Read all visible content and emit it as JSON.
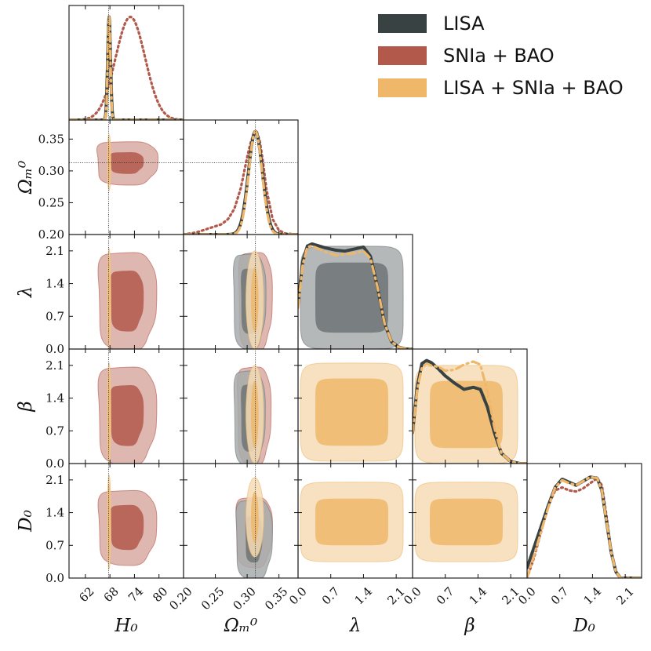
{
  "chart_data": {
    "type": "corner",
    "legend": {
      "placement": "top-right",
      "entries": [
        {
          "label": "LISA",
          "color": "#394243"
        },
        {
          "label": "SNIa + BAO",
          "color": "#b2594b"
        },
        {
          "label": "LISA + SNIa + BAO",
          "color": "#efb76a"
        }
      ]
    },
    "parameters": [
      {
        "name": "H0",
        "label": "H₀",
        "range": [
          58,
          86
        ],
        "ticks": [
          62,
          68,
          74,
          80
        ],
        "truth": 67.7
      },
      {
        "name": "Om",
        "label": "Ωₘ⁰",
        "range": [
          0.2,
          0.38
        ],
        "ticks": [
          0.2,
          0.25,
          0.3,
          0.35
        ],
        "truth": 0.313
      },
      {
        "name": "lambda",
        "label": "λ",
        "range": [
          0.0,
          2.45
        ],
        "ticks": [
          0.0,
          0.7,
          1.4,
          2.1
        ],
        "truth": null
      },
      {
        "name": "beta",
        "label": "β",
        "range": [
          0.0,
          2.45
        ],
        "ticks": [
          0.0,
          0.7,
          1.4,
          2.1
        ],
        "truth": null
      },
      {
        "name": "D0",
        "label": "D₀",
        "range": [
          0.0,
          2.45
        ],
        "ticks": [
          0.0,
          0.7,
          1.4,
          2.1
        ],
        "truth": null
      }
    ],
    "series": [
      {
        "name": "LISA",
        "color": "#394243",
        "marginals": {
          "H0": {
            "type": "gauss",
            "mean": 67.8,
            "sd": 0.35
          },
          "Om": {
            "type": "gauss",
            "mean": 0.313,
            "sd": 0.011
          },
          "lambda": {
            "type": "points",
            "x": [
              0.0,
              0.1,
              0.2,
              0.3,
              0.45,
              0.6,
              0.8,
              1.0,
              1.2,
              1.4,
              1.55,
              1.7,
              1.85,
              2.0,
              2.15,
              2.3,
              2.45
            ],
            "y": [
              0.45,
              0.85,
              1.0,
              1.02,
              1.0,
              0.98,
              0.96,
              0.95,
              0.97,
              0.99,
              0.9,
              0.6,
              0.25,
              0.07,
              0.02,
              0.0,
              0.0
            ]
          },
          "beta": {
            "type": "points",
            "x": [
              0.0,
              0.1,
              0.2,
              0.3,
              0.4,
              0.55,
              0.7,
              0.9,
              1.1,
              1.3,
              1.45,
              1.6,
              1.75,
              1.9,
              2.1,
              2.3,
              2.45
            ],
            "y": [
              0.3,
              0.75,
              0.97,
              1.0,
              0.98,
              0.92,
              0.85,
              0.78,
              0.72,
              0.74,
              0.72,
              0.55,
              0.3,
              0.1,
              0.02,
              0.0,
              0.0
            ]
          },
          "D0": {
            "type": "points",
            "x": [
              0.0,
              0.15,
              0.3,
              0.45,
              0.6,
              0.75,
              0.9,
              1.05,
              1.2,
              1.35,
              1.5,
              1.6,
              1.7,
              1.8,
              1.9,
              2.0,
              2.2,
              2.45
            ],
            "y": [
              0.1,
              0.3,
              0.5,
              0.7,
              0.88,
              0.96,
              0.93,
              0.9,
              0.94,
              0.98,
              0.97,
              0.85,
              0.55,
              0.25,
              0.06,
              0.0,
              0.0,
              0.0
            ]
          }
        }
      },
      {
        "name": "SNIa + BAO",
        "color": "#b2594b",
        "marginals": {
          "H0": {
            "type": "gauss",
            "mean": 73.0,
            "sd": 3.6
          },
          "Om": {
            "type": "points",
            "x": [
              0.2,
              0.22,
              0.24,
              0.26,
              0.27,
              0.28,
              0.29,
              0.3,
              0.305,
              0.31,
              0.315,
              0.32,
              0.325,
              0.33,
              0.34,
              0.35,
              0.36,
              0.38
            ],
            "y": [
              0.0,
              0.02,
              0.06,
              0.1,
              0.15,
              0.25,
              0.45,
              0.75,
              0.88,
              0.97,
              1.0,
              0.9,
              0.7,
              0.45,
              0.15,
              0.04,
              0.01,
              0.0
            ]
          },
          "lambda": {
            "type": "flat"
          },
          "beta": {
            "type": "flat"
          },
          "D0": {
            "type": "points",
            "x": [
              0.0,
              0.15,
              0.3,
              0.45,
              0.6,
              0.75,
              0.9,
              1.05,
              1.2,
              1.35,
              1.5,
              1.6,
              1.7,
              1.8,
              1.9,
              2.0,
              2.2,
              2.45
            ],
            "y": [
              0.0,
              0.2,
              0.45,
              0.7,
              0.85,
              0.88,
              0.85,
              0.84,
              0.87,
              0.92,
              0.97,
              0.9,
              0.6,
              0.25,
              0.06,
              0.0,
              0.0,
              0.0
            ]
          }
        }
      },
      {
        "name": "LISA + SNIa + BAO",
        "color": "#efb76a",
        "marginals": {
          "H0": {
            "type": "gauss",
            "mean": 67.8,
            "sd": 0.33
          },
          "Om": {
            "type": "gauss",
            "mean": 0.313,
            "sd": 0.0105
          },
          "lambda": {
            "type": "points",
            "x": [
              0.0,
              0.1,
              0.2,
              0.3,
              0.45,
              0.6,
              0.8,
              1.0,
              1.2,
              1.4,
              1.55,
              1.7,
              1.85,
              2.0,
              2.15,
              2.3,
              2.45
            ],
            "y": [
              0.4,
              0.82,
              0.99,
              1.0,
              0.97,
              0.94,
              0.91,
              0.92,
              0.93,
              0.95,
              0.88,
              0.6,
              0.25,
              0.07,
              0.02,
              0.0,
              0.0
            ]
          },
          "beta": {
            "type": "points",
            "x": [
              0.0,
              0.1,
              0.2,
              0.3,
              0.4,
              0.55,
              0.7,
              0.9,
              1.1,
              1.3,
              1.45,
              1.6,
              1.75,
              1.9,
              2.1,
              2.3,
              2.45
            ],
            "y": [
              0.3,
              0.72,
              0.93,
              0.97,
              0.95,
              0.94,
              0.9,
              0.91,
              0.96,
              0.99,
              0.96,
              0.7,
              0.35,
              0.1,
              0.02,
              0.0,
              0.0
            ]
          },
          "D0": {
            "type": "points",
            "x": [
              0.0,
              0.15,
              0.3,
              0.45,
              0.6,
              0.75,
              0.9,
              1.05,
              1.2,
              1.35,
              1.5,
              1.6,
              1.7,
              1.8,
              1.9,
              2.0,
              2.2,
              2.45
            ],
            "y": [
              0.0,
              0.22,
              0.45,
              0.68,
              0.88,
              0.95,
              0.92,
              0.9,
              0.94,
              0.98,
              0.97,
              0.85,
              0.55,
              0.25,
              0.06,
              0.0,
              0.0,
              0.0
            ]
          }
        }
      }
    ],
    "contours": [
      {
        "row": "Om",
        "col": "H0",
        "series": "SNIa + BAO",
        "center": [
          72.0,
          0.313
        ],
        "half": [
          [
            4.0,
            0.017
          ],
          [
            7.3,
            0.034
          ]
        ],
        "style": "blob"
      },
      {
        "row": "Om",
        "col": "H0",
        "series": "LISA + SNIa + BAO",
        "center": [
          67.8,
          0.313
        ],
        "half": [
          [
            0.3,
            0.036
          ],
          [
            0.45,
            0.044
          ]
        ],
        "style": "oval"
      },
      {
        "row": "lambda",
        "col": "H0",
        "series": "SNIa + BAO",
        "center": [
          72.0,
          1.05
        ],
        "half": [
          [
            4.0,
            0.65
          ],
          [
            7.0,
            1.05
          ]
        ],
        "style": "blob"
      },
      {
        "row": "lambda",
        "col": "H0",
        "series": "LISA + SNIa + BAO",
        "center": [
          67.8,
          1.05
        ],
        "half": [
          [
            0.3,
            0.95
          ],
          [
            0.45,
            1.1
          ]
        ],
        "style": "oval"
      },
      {
        "row": "lambda",
        "col": "Om",
        "series": "LISA",
        "center": [
          0.303,
          1.05
        ],
        "half": [
          [
            0.013,
            0.7
          ],
          [
            0.025,
            1.02
          ]
        ],
        "style": "blob"
      },
      {
        "row": "lambda",
        "col": "Om",
        "series": "SNIa + BAO",
        "center": [
          0.312,
          1.05
        ],
        "half": [
          [
            0.012,
            0.72
          ],
          [
            0.026,
            1.05
          ]
        ],
        "style": "blob"
      },
      {
        "row": "lambda",
        "col": "Om",
        "series": "LISA + SNIa + BAO",
        "center": [
          0.312,
          1.05
        ],
        "half": [
          [
            0.006,
            0.7
          ],
          [
            0.014,
            1.05
          ]
        ],
        "style": "oval"
      },
      {
        "row": "lambda",
        "col": "lambda",
        "series": "LISA",
        "center": [
          1.15,
          1.1
        ],
        "half": [
          [
            0.78,
            0.75
          ],
          [
            1.1,
            1.1
          ]
        ],
        "style": "square"
      },
      {
        "row": "beta",
        "col": "H0",
        "series": "SNIa + BAO",
        "center": [
          72.0,
          1.05
        ],
        "half": [
          [
            4.0,
            0.65
          ],
          [
            7.0,
            1.05
          ]
        ],
        "style": "blob"
      },
      {
        "row": "beta",
        "col": "H0",
        "series": "LISA + SNIa + BAO",
        "center": [
          67.8,
          1.05
        ],
        "half": [
          [
            0.3,
            0.95
          ],
          [
            0.45,
            1.1
          ]
        ],
        "style": "oval"
      },
      {
        "row": "beta",
        "col": "Om",
        "series": "LISA",
        "center": [
          0.303,
          1.0
        ],
        "half": [
          [
            0.013,
            0.72
          ],
          [
            0.024,
            1.02
          ]
        ],
        "style": "blob"
      },
      {
        "row": "beta",
        "col": "Om",
        "series": "SNIa + BAO",
        "center": [
          0.31,
          1.05
        ],
        "half": [
          [
            0.013,
            0.72
          ],
          [
            0.026,
            1.05
          ]
        ],
        "style": "blob"
      },
      {
        "row": "beta",
        "col": "Om",
        "series": "LISA + SNIa + BAO",
        "center": [
          0.312,
          1.05
        ],
        "half": [
          [
            0.006,
            0.72
          ],
          [
            0.014,
            1.05
          ]
        ],
        "style": "oval"
      },
      {
        "row": "beta",
        "col": "lambda",
        "series": "LISA + SNIa + BAO",
        "center": [
          1.15,
          1.1
        ],
        "half": [
          [
            0.78,
            0.72
          ],
          [
            1.1,
            1.05
          ]
        ],
        "style": "square"
      },
      {
        "row": "beta",
        "col": "beta",
        "series": "LISA + SNIa + BAO",
        "center": [
          1.15,
          1.05
        ],
        "half": [
          [
            0.78,
            0.72
          ],
          [
            1.1,
            1.05
          ]
        ],
        "style": "square"
      },
      {
        "row": "D0",
        "col": "H0",
        "series": "SNIa + BAO",
        "center": [
          72.0,
          1.1
        ],
        "half": [
          [
            4.0,
            0.48
          ],
          [
            7.0,
            0.8
          ]
        ],
        "style": "blob"
      },
      {
        "row": "D0",
        "col": "H0",
        "series": "LISA + SNIa + BAO",
        "center": [
          67.8,
          1.2
        ],
        "half": [
          [
            0.3,
            0.85
          ],
          [
            0.45,
            1.0
          ]
        ],
        "style": "oval"
      },
      {
        "row": "D0",
        "col": "Om",
        "series": "LISA",
        "center": [
          0.31,
          0.85
        ],
        "half": [
          [
            0.013,
            0.5
          ],
          [
            0.028,
            0.85
          ]
        ],
        "style": "blob"
      },
      {
        "row": "D0",
        "col": "Om",
        "series": "SNIa + BAO",
        "center": [
          0.31,
          1.0
        ],
        "half": [
          [
            0.013,
            0.5
          ],
          [
            0.028,
            0.75
          ]
        ],
        "style": "blob"
      },
      {
        "row": "D0",
        "col": "Om",
        "series": "LISA + SNIa + BAO",
        "center": [
          0.312,
          1.3
        ],
        "half": [
          [
            0.006,
            0.55
          ],
          [
            0.014,
            0.85
          ]
        ],
        "style": "oval"
      },
      {
        "row": "D0",
        "col": "lambda",
        "series": "LISA + SNIa + BAO",
        "center": [
          1.15,
          1.2
        ],
        "half": [
          [
            0.78,
            0.5
          ],
          [
            1.1,
            0.85
          ]
        ],
        "style": "square"
      },
      {
        "row": "D0",
        "col": "beta",
        "series": "LISA + SNIa + BAO",
        "center": [
          1.15,
          1.2
        ],
        "half": [
          [
            0.78,
            0.5
          ],
          [
            1.1,
            0.85
          ]
        ],
        "style": "square"
      }
    ]
  }
}
